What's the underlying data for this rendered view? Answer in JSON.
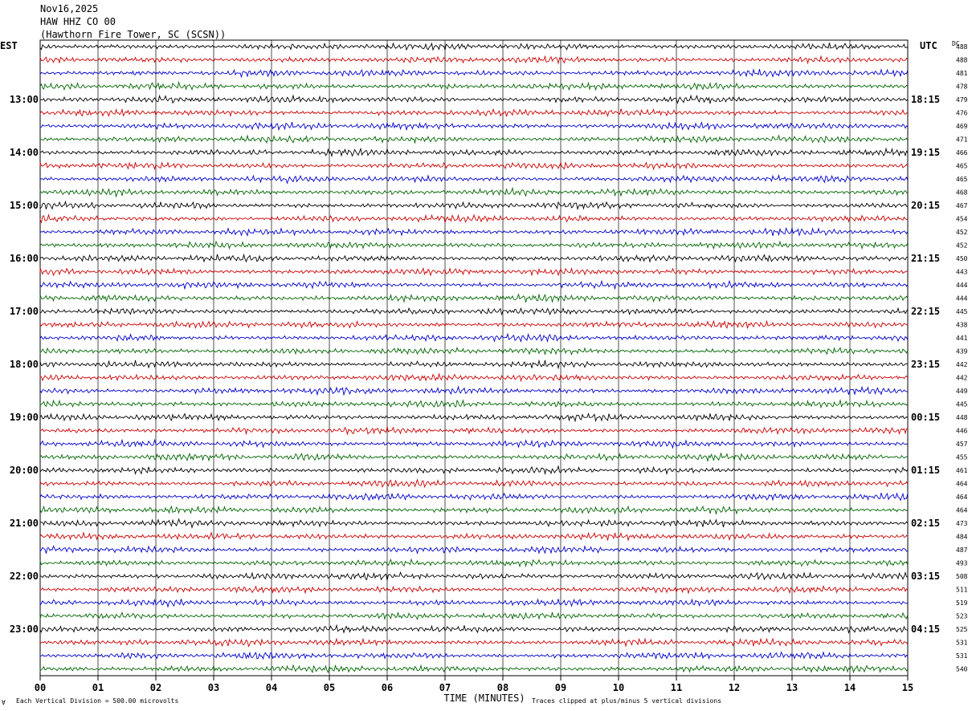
{
  "header": {
    "date": "Nov16,2025",
    "station": "HAW HHZ CO 00",
    "location": "(Hawthorn Fire Tower, SC (SCSN))"
  },
  "labels": {
    "left_tz": "EST",
    "right_tz": "UTC",
    "dc_label": "DC",
    "x_axis_title": "TIME (MINUTES)",
    "scale_note": "Each Vertical Division =  500.00 microvolts",
    "clip_note": "Traces clipped at plus/minus 5 vertical divisions",
    "corner_mark": "∀"
  },
  "colors": {
    "trace_cycle": [
      "#000000",
      "#cc0000",
      "#0000cc",
      "#006600"
    ],
    "grid": "#000000"
  },
  "chart_data": {
    "type": "line",
    "chart_kind": "helicorder seismogram",
    "x_ticks": [
      "00",
      "01",
      "02",
      "03",
      "04",
      "05",
      "06",
      "07",
      "08",
      "09",
      "10",
      "11",
      "12",
      "13",
      "14",
      "15"
    ],
    "xlim": [
      0,
      15
    ],
    "rows_per_hour": 4,
    "left_hour_labels": [
      "13:00",
      "14:00",
      "15:00",
      "16:00",
      "17:00",
      "18:00",
      "19:00",
      "20:00",
      "21:00",
      "22:00",
      "23:00"
    ],
    "right_hour_labels": [
      "18:15",
      "19:15",
      "20:15",
      "21:15",
      "22:15",
      "23:15",
      "00:15",
      "01:15",
      "02:15",
      "03:15",
      "04:15"
    ],
    "dc_values": [
      488,
      488,
      481,
      478,
      479,
      476,
      469,
      471,
      466,
      465,
      465,
      468,
      467,
      454,
      452,
      452,
      450,
      443,
      444,
      444,
      445,
      438,
      441,
      439,
      442,
      442,
      449,
      445,
      448,
      446,
      457,
      455,
      461,
      464,
      464,
      464,
      473,
      484,
      487,
      493,
      508,
      511,
      519,
      523,
      525,
      531,
      531,
      540
    ]
  }
}
